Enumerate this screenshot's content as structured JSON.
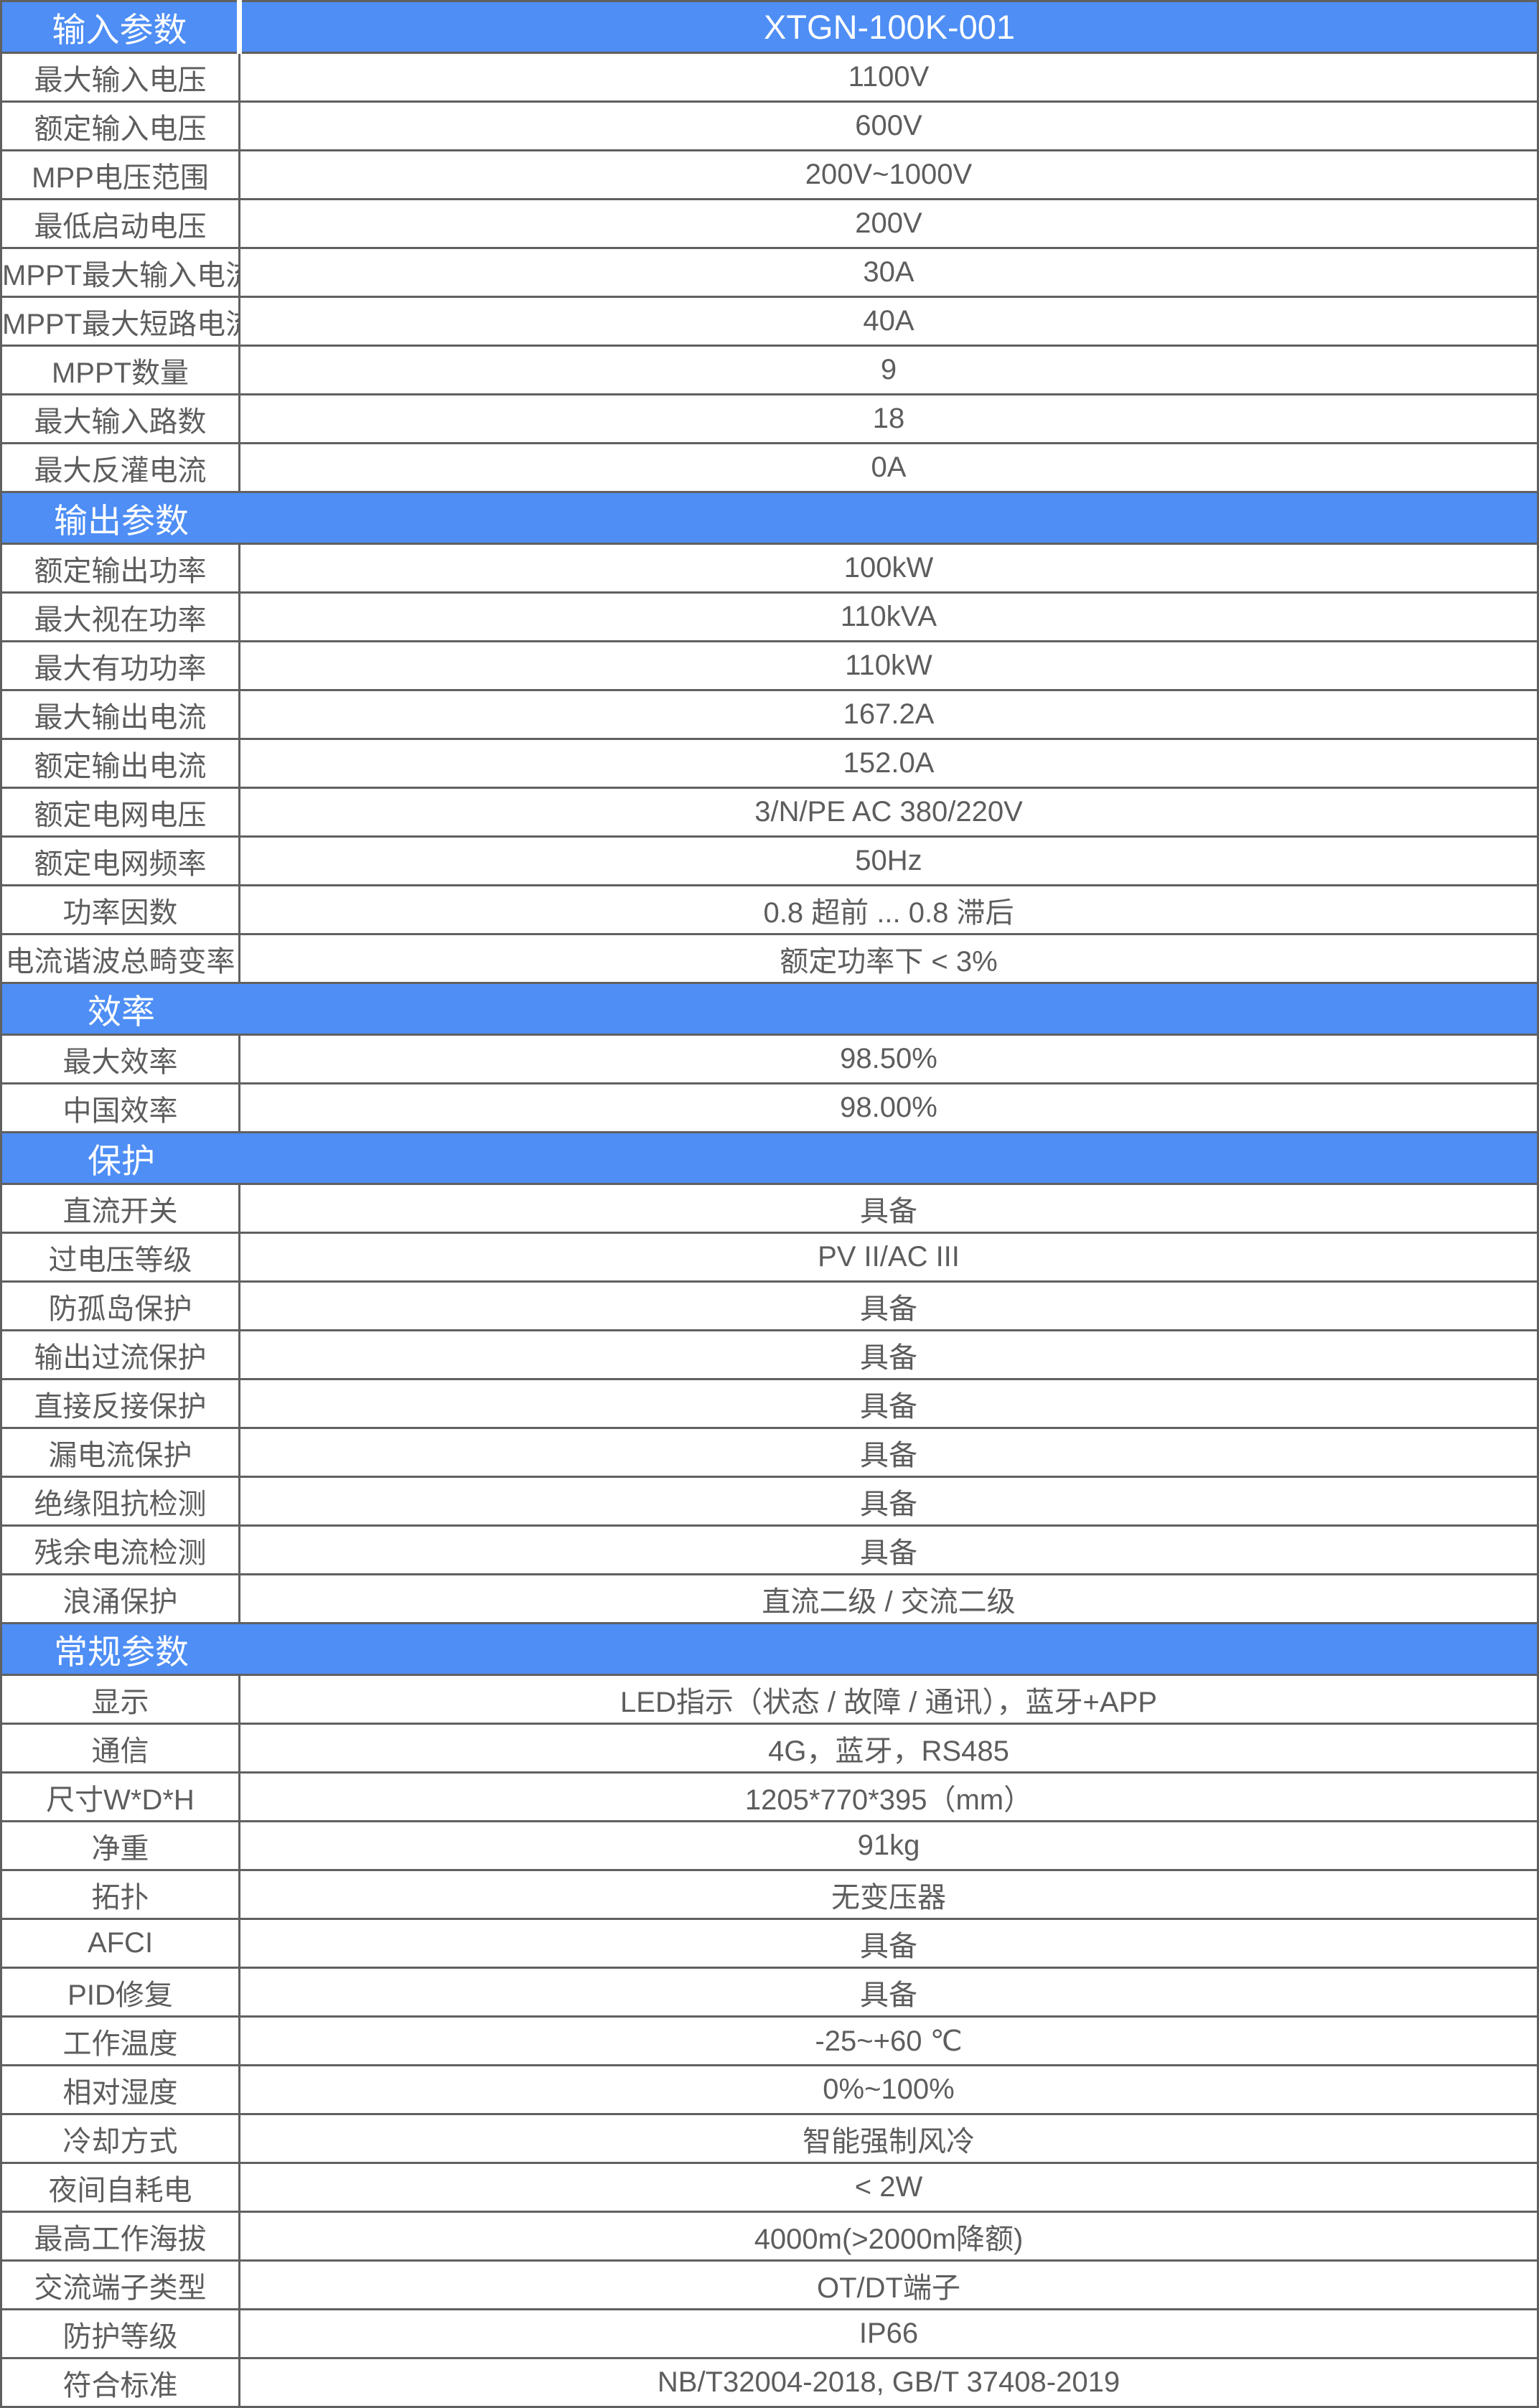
{
  "model": "XTGN-100K-001",
  "colors": {
    "accent_blue": "#4E8EF5",
    "border_gray": "#606060",
    "text_gray": "#5D5D5D",
    "header_text": "#FFFFFF",
    "row_background": "#FFFFFF"
  },
  "sections": [
    {
      "title": "输入参数",
      "rows": [
        {
          "label": "最大输入电压",
          "value": "1100V"
        },
        {
          "label": "额定输入电压",
          "value": "600V"
        },
        {
          "label": "MPP电压范围",
          "value": "200V~1000V"
        },
        {
          "label": "最低启动电压",
          "value": "200V"
        },
        {
          "label": "MPPT最大输入电流",
          "value": "30A"
        },
        {
          "label": "MPPT最大短路电流",
          "value": "40A"
        },
        {
          "label": "MPPT数量",
          "value": "9"
        },
        {
          "label": "最大输入路数",
          "value": "18"
        },
        {
          "label": "最大反灌电流",
          "value": "0A"
        }
      ]
    },
    {
      "title": "输出参数",
      "rows": [
        {
          "label": "额定输出功率",
          "value": "100kW"
        },
        {
          "label": "最大视在功率",
          "value": "110kVA"
        },
        {
          "label": "最大有功功率",
          "value": "110kW"
        },
        {
          "label": "最大输出电流",
          "value": "167.2A"
        },
        {
          "label": "额定输出电流",
          "value": "152.0A"
        },
        {
          "label": "额定电网电压",
          "value": "3/N/PE AC 380/220V"
        },
        {
          "label": "额定电网频率",
          "value": "50Hz"
        },
        {
          "label": "功率因数",
          "value": "0.8 超前 ... 0.8 滞后"
        },
        {
          "label": "电流谐波总畸变率",
          "value": "额定功率下 < 3%"
        }
      ]
    },
    {
      "title": "效率",
      "rows": [
        {
          "label": "最大效率",
          "value": "98.50%"
        },
        {
          "label": "中国效率",
          "value": "98.00%"
        }
      ]
    },
    {
      "title": "保护",
      "rows": [
        {
          "label": "直流开关",
          "value": "具备"
        },
        {
          "label": "过电压等级",
          "value": "PV II/AC III"
        },
        {
          "label": "防孤岛保护",
          "value": "具备"
        },
        {
          "label": "输出过流保护",
          "value": "具备"
        },
        {
          "label": "直接反接保护",
          "value": "具备"
        },
        {
          "label": "漏电流保护",
          "value": "具备"
        },
        {
          "label": "绝缘阻抗检测",
          "value": "具备"
        },
        {
          "label": "残余电流检测",
          "value": "具备"
        },
        {
          "label": "浪涌保护",
          "value": "直流二级 / 交流二级"
        }
      ]
    },
    {
      "title": "常规参数",
      "rows": [
        {
          "label": "显示",
          "value": "LED指示（状态 / 故障 / 通讯），蓝牙+APP"
        },
        {
          "label": "通信",
          "value": "4G，蓝牙，RS485"
        },
        {
          "label": "尺寸W*D*H",
          "value": "1205*770*395（mm）"
        },
        {
          "label": "净重",
          "value": "91kg"
        },
        {
          "label": "拓扑",
          "value": "无变压器"
        },
        {
          "label": "AFCI",
          "value": "具备"
        },
        {
          "label": "PID修复",
          "value": "具备"
        },
        {
          "label": "工作温度",
          "value": "-25~+60 ℃"
        },
        {
          "label": "相对湿度",
          "value": "0%~100%"
        },
        {
          "label": "冷却方式",
          "value": "智能强制风冷"
        },
        {
          "label": "夜间自耗电",
          "value": "< 2W"
        },
        {
          "label": "最高工作海拔",
          "value": "4000m(>2000m降额)"
        },
        {
          "label": "交流端子类型",
          "value": "OT/DT端子"
        },
        {
          "label": "防护等级",
          "value": "IP66"
        },
        {
          "label": "符合标准",
          "value": "NB/T32004-2018, GB/T 37408-2019"
        }
      ]
    }
  ]
}
